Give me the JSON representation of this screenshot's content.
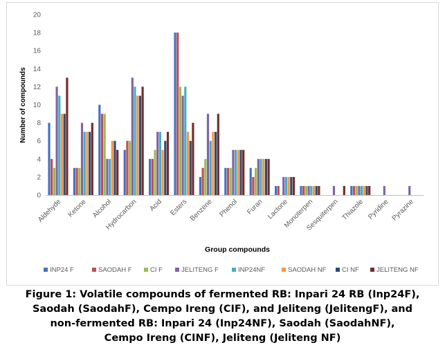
{
  "chart_data": {
    "type": "bar",
    "xlabel": "Group compounds",
    "ylabel": "Number of compounds",
    "ylim": [
      0,
      20
    ],
    "yticks": [
      "0",
      "2",
      "4",
      "6",
      "8",
      "10",
      "12",
      "14",
      "16",
      "18",
      "20"
    ],
    "grid": false,
    "legend_position": "bottom",
    "categories": [
      "Aldehyde",
      "Ketone",
      "Alcohol",
      "Hydrocarbon",
      "Acid",
      "Esters",
      "Benzene",
      "Phenol",
      "Furan",
      "Lactone",
      "Monoterpen",
      "Sesquiterpen",
      "Thiazole",
      "Pyridine",
      "Pyrazine"
    ],
    "series": [
      {
        "name": "INP24 F",
        "color": "#4472C4",
        "values": [
          8,
          3,
          10,
          5,
          4,
          18,
          2,
          3,
          3,
          1,
          1,
          0,
          1,
          0,
          0
        ]
      },
      {
        "name": "SAODAH F",
        "color": "#C0504D",
        "values": [
          4,
          3,
          9,
          6,
          4,
          18,
          3,
          3,
          2,
          1,
          1,
          0,
          1,
          0,
          0
        ]
      },
      {
        "name": "CI F",
        "color": "#9BBB59",
        "values": [
          3,
          3,
          9,
          6,
          5,
          12,
          4,
          3,
          3,
          0,
          1,
          0,
          1,
          0,
          0
        ]
      },
      {
        "name": "JELITENG F",
        "color": "#8064A2",
        "values": [
          12,
          8,
          4,
          13,
          7,
          11,
          9,
          5,
          4,
          2,
          1,
          1,
          1,
          1,
          1
        ]
      },
      {
        "name": "INP24NF",
        "color": "#4BACC6",
        "values": [
          11,
          7,
          4,
          12,
          7,
          12,
          6,
          5,
          4,
          2,
          1,
          0,
          1,
          0,
          0
        ]
      },
      {
        "name": "SAODAH NF",
        "color": "#F79646",
        "values": [
          9,
          7,
          6,
          11,
          5,
          7,
          7,
          5,
          4,
          2,
          1,
          0,
          1,
          0,
          0
        ]
      },
      {
        "name": "CI NF",
        "color": "#2C4D75",
        "values": [
          9,
          7,
          6,
          11,
          6,
          6,
          7,
          5,
          4,
          2,
          1,
          0,
          1,
          0,
          0
        ]
      },
      {
        "name": "JELITENG NF",
        "color": "#772C2A",
        "values": [
          13,
          8,
          5,
          12,
          7,
          8,
          9,
          5,
          4,
          2,
          1,
          1,
          1,
          0,
          0
        ]
      }
    ]
  },
  "caption": {
    "lines": [
      "Figure 1: Volatile compounds of fermented RB: Inpari 24 RB (Inp24F),",
      "Saodah (SaodahF), Cempo Ireng (CIF), and Jeliteng (JelitengF), and",
      "non-fermented RB: Inpari 24 (Inp24NF), Saodah (SaodahNF),",
      "Cempo Ireng (CINF), Jeliteng (Jeliteng NF)"
    ]
  }
}
